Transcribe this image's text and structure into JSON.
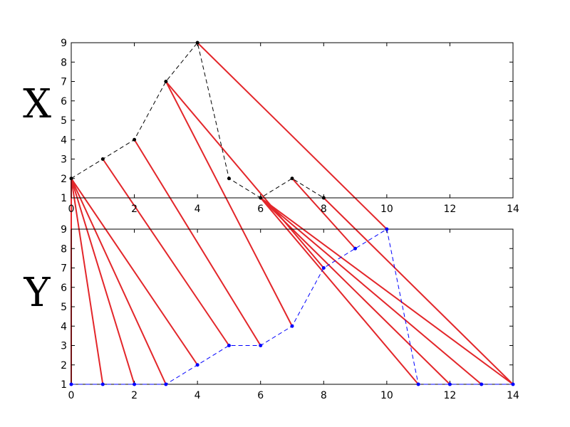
{
  "chart_data": [
    {
      "type": "line",
      "ylabel": "X",
      "x": [
        0,
        1,
        2,
        3,
        4,
        5,
        6,
        7,
        8
      ],
      "series": [
        {
          "color": "#000000",
          "values": [
            2,
            3,
            4,
            7,
            9,
            2,
            1,
            2,
            1
          ]
        }
      ],
      "xlim": [
        0,
        14
      ],
      "ylim": [
        1,
        9
      ],
      "xticks": [
        0,
        2,
        4,
        6,
        8,
        10,
        12,
        14
      ],
      "yticks": [
        1,
        2,
        3,
        4,
        5,
        6,
        7,
        8,
        9
      ]
    },
    {
      "type": "line",
      "ylabel": "Y",
      "x": [
        0,
        1,
        2,
        3,
        4,
        5,
        6,
        7,
        8,
        9,
        10,
        11,
        12,
        13,
        14
      ],
      "series": [
        {
          "color": "#0000ff",
          "values": [
            1,
            1,
            1,
            1,
            2,
            3,
            3,
            4,
            7,
            8,
            9,
            1,
            1,
            1,
            1
          ]
        }
      ],
      "xlim": [
        0,
        14
      ],
      "ylim": [
        1,
        9
      ],
      "xticks": [
        0,
        2,
        4,
        6,
        8,
        10,
        12,
        14
      ],
      "yticks": [
        1,
        2,
        3,
        4,
        5,
        6,
        7,
        8,
        9
      ]
    }
  ],
  "connection_color": "#e3262a",
  "connections": [
    [
      0,
      0
    ],
    [
      0,
      1
    ],
    [
      0,
      2
    ],
    [
      0,
      3
    ],
    [
      0,
      4
    ],
    [
      1,
      5
    ],
    [
      2,
      6
    ],
    [
      3,
      7
    ],
    [
      3,
      8
    ],
    [
      7,
      9
    ],
    [
      4,
      10
    ],
    [
      6,
      11
    ],
    [
      6,
      12
    ],
    [
      6,
      13
    ],
    [
      6,
      14
    ],
    [
      8,
      14
    ]
  ]
}
